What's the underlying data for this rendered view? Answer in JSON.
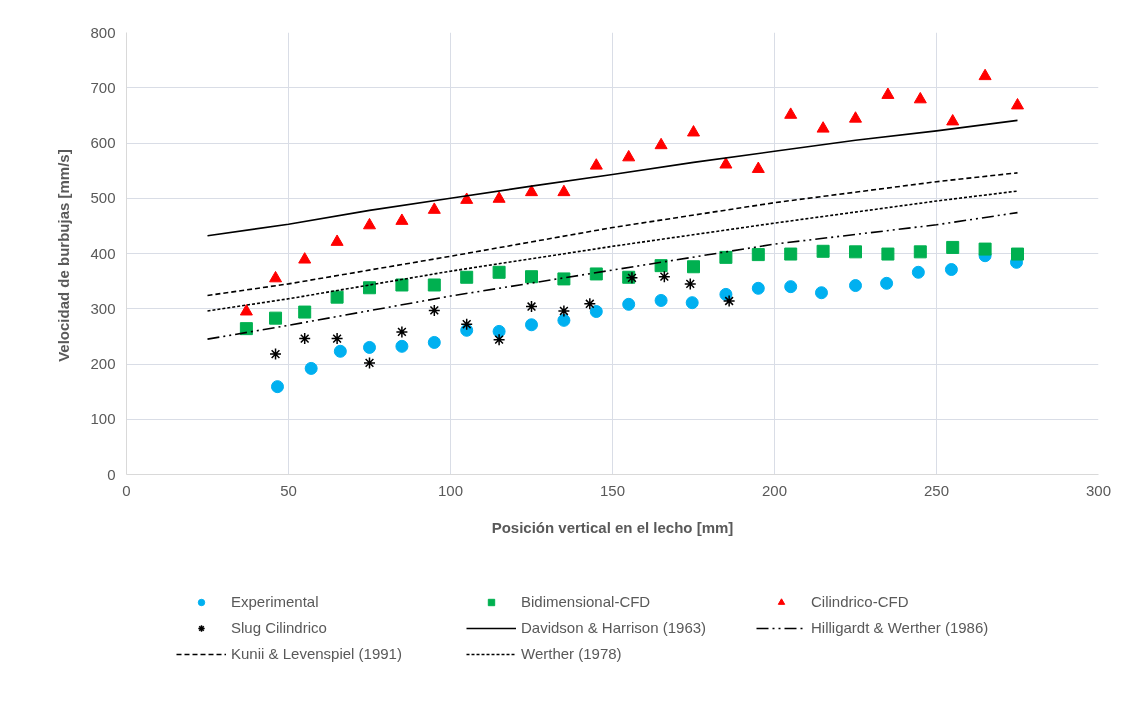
{
  "chart_data": {
    "type": "scatter",
    "xlabel": "Posición vertical en el lecho [mm]",
    "ylabel": "Velocidad de burbujas  [mm/s]",
    "xlim": [
      0,
      300
    ],
    "xticks": [
      0,
      50,
      100,
      150,
      200,
      250,
      300
    ],
    "ylim": [
      0,
      800
    ],
    "yticks": [
      0,
      100,
      200,
      300,
      400,
      500,
      600,
      700,
      800
    ],
    "grid": true,
    "legend": "bottom",
    "series": [
      {
        "name": "Experimental",
        "type": "scatter",
        "marker": "circle",
        "color": "#00b0f0",
        "x": [
          46.6,
          57,
          66,
          75,
          85,
          95,
          105,
          115,
          125,
          135,
          145,
          155,
          165,
          174.6,
          185,
          195,
          205,
          214.5,
          225,
          234.6,
          244.4,
          254.6,
          265,
          274.7
        ],
        "values": [
          159,
          192,
          223,
          230,
          232,
          239,
          261,
          259,
          271,
          279,
          295,
          308,
          315,
          311,
          326,
          337,
          340,
          329,
          342,
          346,
          366,
          371,
          396,
          384
        ]
      },
      {
        "name": "Bidimensional-CFD",
        "type": "scatter",
        "marker": "square",
        "color": "#00b050",
        "x": [
          37,
          46,
          55,
          65,
          75,
          85,
          95,
          105,
          115,
          125,
          135,
          145,
          155,
          165,
          175,
          185,
          195,
          205,
          215,
          225,
          235,
          245,
          255,
          265,
          275
        ],
        "values": [
          264,
          283,
          294,
          321,
          338,
          343,
          343,
          357,
          366,
          358,
          354,
          363,
          357,
          378,
          376,
          393,
          398,
          399,
          404,
          403,
          399,
          403,
          411,
          408,
          399
        ]
      },
      {
        "name": "Cilindrico-CFD",
        "type": "scatter",
        "marker": "triangle",
        "color": "#ff0000",
        "x": [
          37,
          46,
          55,
          65,
          75,
          85,
          95,
          105,
          115,
          125,
          135,
          145,
          155,
          165,
          175,
          185,
          195,
          205,
          215,
          225,
          235,
          245,
          255,
          265,
          275
        ],
        "values": [
          295,
          355,
          389,
          421,
          451,
          459,
          479,
          497,
          499,
          511,
          511,
          559,
          574,
          596,
          619,
          561,
          553,
          651,
          626,
          644,
          687,
          679,
          639,
          721,
          668
        ]
      },
      {
        "name": "Slug Cilindrico",
        "type": "scatter",
        "marker": "cross",
        "color": "#000000",
        "x": [
          46,
          55,
          65,
          75,
          85,
          95,
          105,
          115,
          125,
          135,
          143,
          156,
          166,
          174,
          186
        ],
        "values": [
          218,
          246,
          246,
          202,
          258,
          297,
          272,
          244,
          304,
          296,
          309,
          356,
          358,
          345,
          314
        ]
      },
      {
        "name": "Davidson & Harrison (1963)",
        "type": "line",
        "line_style": "solid",
        "color": "#000000",
        "x": [
          25,
          50,
          75,
          100,
          125,
          150,
          175,
          200,
          225,
          250,
          275
        ],
        "values": [
          432,
          453,
          478,
          500,
          522,
          543,
          565,
          585,
          605,
          622,
          641
        ]
      },
      {
        "name": "Hilligardt & Werther (1986)",
        "type": "line",
        "line_style": "dashdot",
        "color": "#000000",
        "x": [
          25,
          50,
          100,
          150,
          200,
          250,
          275
        ],
        "values": [
          245,
          270,
          323,
          370,
          417,
          452,
          474
        ]
      },
      {
        "name": "Kunii & Levenspiel (1991)",
        "type": "line",
        "line_style": "dashed",
        "color": "#000000",
        "x": [
          25,
          50,
          100,
          150,
          200,
          250,
          275
        ],
        "values": [
          324,
          345,
          395,
          447,
          492,
          530,
          546
        ]
      },
      {
        "name": "Werther (1978)",
        "type": "line",
        "line_style": "dotted",
        "color": "#000000",
        "x": [
          25,
          50,
          100,
          150,
          200,
          250,
          275
        ],
        "values": [
          296,
          318,
          368,
          413,
          455,
          495,
          513
        ]
      }
    ]
  }
}
